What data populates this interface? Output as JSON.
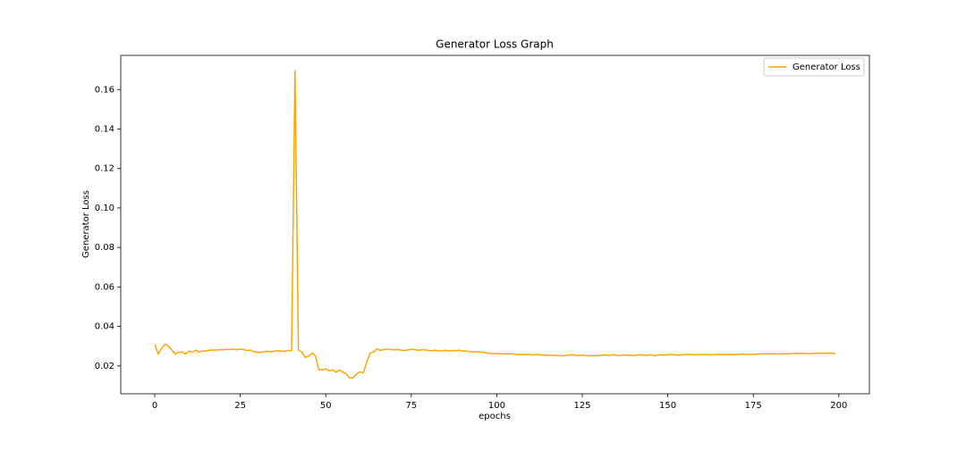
{
  "chart_data": {
    "type": "line",
    "title": "Generator Loss Graph",
    "xlabel": "epochs",
    "ylabel": "Generator Loss",
    "x": [
      0,
      1,
      2,
      3,
      4,
      5,
      6,
      7,
      8,
      9,
      10,
      11,
      12,
      13,
      14,
      15,
      16,
      17,
      18,
      19,
      20,
      21,
      22,
      23,
      24,
      25,
      26,
      27,
      28,
      29,
      30,
      31,
      32,
      33,
      34,
      35,
      36,
      37,
      38,
      39,
      40,
      41,
      42,
      43,
      44,
      45,
      46,
      47,
      48,
      49,
      50,
      51,
      52,
      53,
      54,
      55,
      56,
      57,
      58,
      59,
      60,
      61,
      62,
      63,
      64,
      65,
      66,
      67,
      68,
      69,
      70,
      71,
      72,
      73,
      74,
      75,
      76,
      77,
      78,
      79,
      80,
      81,
      82,
      83,
      84,
      85,
      86,
      87,
      88,
      89,
      90,
      91,
      92,
      93,
      94,
      95,
      96,
      97,
      98,
      99,
      100,
      101,
      102,
      103,
      104,
      105,
      106,
      107,
      108,
      109,
      110,
      111,
      112,
      113,
      114,
      115,
      116,
      117,
      118,
      119,
      120,
      121,
      122,
      123,
      124,
      125,
      126,
      127,
      128,
      129,
      130,
      131,
      132,
      133,
      134,
      135,
      136,
      137,
      138,
      139,
      140,
      141,
      142,
      143,
      144,
      145,
      146,
      147,
      148,
      149,
      150,
      151,
      152,
      153,
      154,
      155,
      156,
      157,
      158,
      159,
      160,
      161,
      162,
      163,
      164,
      165,
      166,
      167,
      168,
      169,
      170,
      171,
      172,
      173,
      174,
      175,
      176,
      177,
      178,
      179,
      180,
      181,
      182,
      183,
      184,
      185,
      186,
      187,
      188,
      189,
      190,
      191,
      192,
      193,
      194,
      195,
      196,
      197,
      198,
      199
    ],
    "series": [
      {
        "name": "Generator Loss",
        "color": "#ffa500",
        "values": [
          0.031,
          0.026,
          0.029,
          0.031,
          0.03,
          0.028,
          0.026,
          0.027,
          0.027,
          0.026,
          0.0275,
          0.027,
          0.028,
          0.027,
          0.0275,
          0.0275,
          0.028,
          0.028,
          0.028,
          0.0282,
          0.0282,
          0.0283,
          0.0283,
          0.0285,
          0.0282,
          0.0285,
          0.0283,
          0.0278,
          0.028,
          0.0272,
          0.027,
          0.0268,
          0.0272,
          0.0275,
          0.027,
          0.0275,
          0.0277,
          0.0275,
          0.0273,
          0.0278,
          0.0278,
          0.1695,
          0.028,
          0.027,
          0.0243,
          0.025,
          0.0265,
          0.025,
          0.018,
          0.018,
          0.0185,
          0.0175,
          0.018,
          0.0168,
          0.018,
          0.0168,
          0.016,
          0.0138,
          0.014,
          0.016,
          0.017,
          0.0165,
          0.022,
          0.0265,
          0.027,
          0.0287,
          0.0278,
          0.0283,
          0.0285,
          0.0283,
          0.0282,
          0.0283,
          0.028,
          0.0278,
          0.0281,
          0.0284,
          0.0283,
          0.0279,
          0.0282,
          0.0281,
          0.0278,
          0.0277,
          0.028,
          0.0276,
          0.0277,
          0.0279,
          0.0276,
          0.0278,
          0.0277,
          0.028,
          0.0274,
          0.0277,
          0.0272,
          0.0271,
          0.0272,
          0.027,
          0.0268,
          0.0266,
          0.0264,
          0.0262,
          0.0263,
          0.0261,
          0.0262,
          0.0261,
          0.0262,
          0.026,
          0.0258,
          0.0258,
          0.0257,
          0.0259,
          0.0257,
          0.0255,
          0.0259,
          0.0254,
          0.0255,
          0.0254,
          0.0253,
          0.0254,
          0.0252,
          0.0251,
          0.0252,
          0.0255,
          0.0257,
          0.0254,
          0.0253,
          0.0255,
          0.0252,
          0.0251,
          0.0251,
          0.0252,
          0.0253,
          0.0255,
          0.0256,
          0.0253,
          0.0257,
          0.0254,
          0.0252,
          0.0256,
          0.0253,
          0.0255,
          0.0252,
          0.0255,
          0.0257,
          0.0255,
          0.0253,
          0.0257,
          0.0251,
          0.0255,
          0.0256,
          0.0254,
          0.0257,
          0.0258,
          0.0256,
          0.0255,
          0.0256,
          0.0257,
          0.0258,
          0.0257,
          0.0256,
          0.0258,
          0.0257,
          0.0258,
          0.0256,
          0.0257,
          0.0258,
          0.0259,
          0.0257,
          0.0258,
          0.0259,
          0.0257,
          0.0258,
          0.0259,
          0.026,
          0.0258,
          0.0259,
          0.0259,
          0.0261,
          0.026,
          0.0261,
          0.0262,
          0.0261,
          0.0262,
          0.026,
          0.0261,
          0.0262,
          0.0261,
          0.0262,
          0.0263,
          0.0264,
          0.0263,
          0.0264,
          0.0262,
          0.0263,
          0.0264,
          0.0264,
          0.0265,
          0.0264,
          0.0265,
          0.0264,
          0.0263
        ]
      }
    ],
    "xlim": [
      -9.95,
      208.95
    ],
    "xticks": [
      0,
      25,
      50,
      75,
      100,
      125,
      150,
      175,
      200
    ],
    "ylim": [
      0.0059,
      0.1773
    ],
    "yticks": [
      0.02,
      0.04,
      0.06,
      0.08,
      {
        "value": 0.1,
        "label": "0.10"
      },
      0.12,
      0.14,
      0.16
    ],
    "legend": "upper right",
    "grid": false
  }
}
